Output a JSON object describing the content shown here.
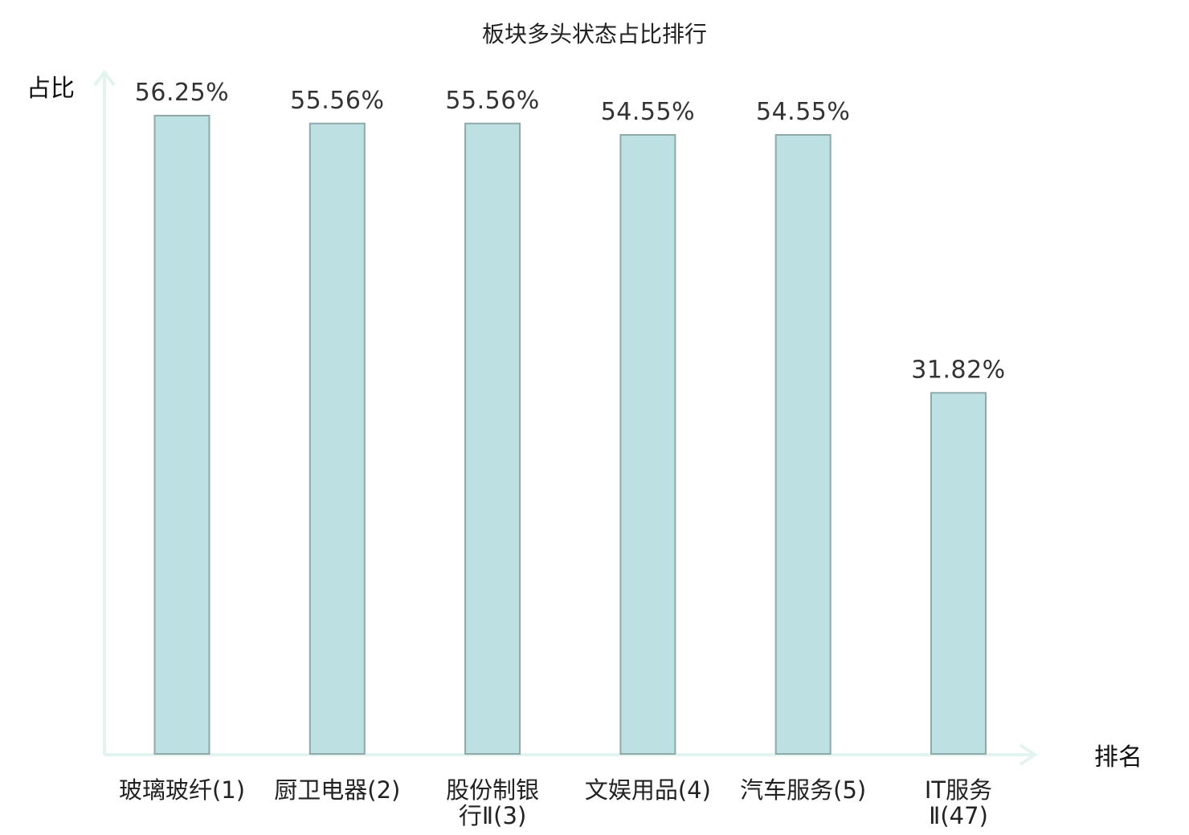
{
  "chart_data": {
    "type": "bar",
    "title": "板块多头状态占比排行",
    "ylabel": "占比",
    "xlabel": "排名",
    "ylim": [
      0,
      56.25
    ],
    "bar_color": "#bde1e3",
    "bar_stroke": "#8fa8a8",
    "axis_color": "#e3f3f0",
    "highlight_color": "#e8262a",
    "categories": [
      [
        "玻璃玻纤(1)"
      ],
      [
        "厨卫电器(2)"
      ],
      [
        "股份制银",
        "行Ⅱ(3)"
      ],
      [
        "文娱用品(4)"
      ],
      [
        "汽车服务(5)"
      ],
      [
        "IT服务",
        "Ⅱ(47)"
      ]
    ],
    "highlight_index": 5,
    "values": [
      56.25,
      55.56,
      55.56,
      54.55,
      54.55,
      31.82
    ],
    "value_labels": [
      "56.25%",
      "55.56%",
      "55.56%",
      "54.55%",
      "54.55%",
      "31.82%"
    ]
  }
}
